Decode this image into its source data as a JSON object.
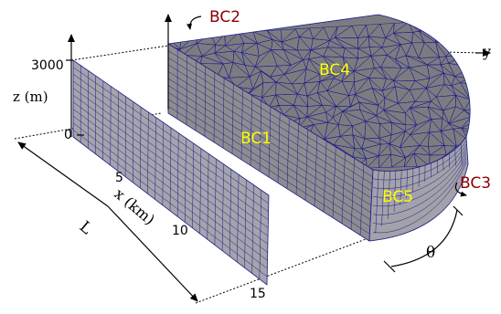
{
  "figure": {
    "boundary_labels": {
      "bc1": "BC1",
      "bc2": "BC2",
      "bc3": "BC3",
      "bc4": "BC4",
      "bc5": "BC5"
    },
    "axes": {
      "z_label": "z (m)",
      "x_label": "x (km)",
      "y_label": "y",
      "theta_label": "θ",
      "length_label": "L",
      "z_ticks": [
        "3000",
        "0"
      ],
      "x_ticks": [
        "5",
        "10",
        "15"
      ]
    },
    "colors": {
      "mesh_face": "#8d8d90",
      "mesh_top": "#7c7c80",
      "mesh_front": "#a2a2a8",
      "mesh_edge": "#1a1a8c",
      "label_yellow": "#ffff00",
      "label_darkred": "#8b0000"
    }
  }
}
